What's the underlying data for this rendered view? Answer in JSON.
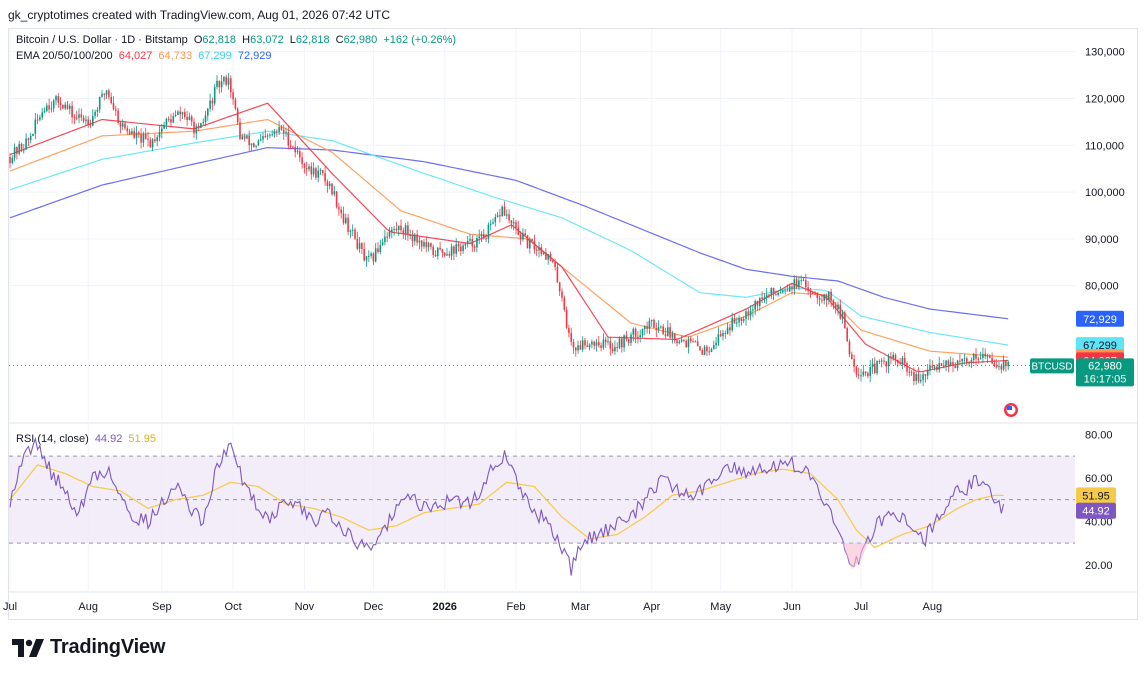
{
  "credit": "gk_cryptotimes created with TradingView.com, Aug 01, 2026 07:42 UTC",
  "legend": {
    "title": "Bitcoin / U.S. Dollar · 1D · Bitstamp",
    "o_label": "O",
    "o_val": "62,818",
    "h_label": "H",
    "h_val": "63,072",
    "l_label": "L",
    "l_val": "62,818",
    "c_label": "C",
    "c_val": "62,980",
    "change": "+162 (+0.26%)",
    "ema_title": "EMA 20/50/100/200",
    "ema20": "64,027",
    "ema50": "64,733",
    "ema100": "67,299",
    "ema200": "72,929",
    "rsi_title": "RSI (14, close)",
    "rsi_val": "44.92",
    "rsi_ma": "51.95"
  },
  "badges": {
    "symbol": "BTCUSD",
    "price": "62,980",
    "countdown": "16:17:05"
  },
  "colors": {
    "up": "#089981",
    "down": "#f23645",
    "ema20": "#f23645",
    "ema50": "#ff9850",
    "ema100": "#5ee4f7",
    "ema200": "#5b5ff0",
    "rsi": "#7e57c2",
    "rsi_ma": "#f7c948",
    "rsi_band": "#ede7f6"
  },
  "brand": "TradingView",
  "chart_data": [
    {
      "type": "candlestick",
      "title": "Bitcoin / U.S. Dollar · 1D · Bitstamp",
      "x_ticks": [
        "Jul",
        "Aug",
        "Sep",
        "Oct",
        "Nov",
        "Dec",
        "2026",
        "Feb",
        "Mar",
        "Apr",
        "May",
        "Jun",
        "Jul",
        "Aug"
      ],
      "y_ticks": [
        "130,000",
        "120,000",
        "110,000",
        "100,000",
        "90,000",
        "80,000"
      ],
      "ylim": [
        56000,
        131000
      ],
      "price_path": [
        [
          0,
          107500
        ],
        [
          8,
          111000
        ],
        [
          15,
          118500
        ],
        [
          22,
          119500
        ],
        [
          28,
          116000
        ],
        [
          35,
          115500
        ],
        [
          42,
          122000
        ],
        [
          48,
          114500
        ],
        [
          54,
          112000
        ],
        [
          61,
          110500
        ],
        [
          68,
          115000
        ],
        [
          75,
          117000
        ],
        [
          82,
          112500
        ],
        [
          90,
          122500
        ],
        [
          95,
          124500
        ],
        [
          100,
          112000
        ],
        [
          106,
          110000
        ],
        [
          112,
          111500
        ],
        [
          118,
          113500
        ],
        [
          124,
          109000
        ],
        [
          130,
          104500
        ],
        [
          135,
          104000
        ],
        [
          140,
          100500
        ],
        [
          145,
          94500
        ],
        [
          150,
          90000
        ],
        [
          155,
          85000
        ],
        [
          158,
          86000
        ],
        [
          163,
          91000
        ],
        [
          170,
          92500
        ],
        [
          177,
          90000
        ],
        [
          184,
          87000
        ],
        [
          191,
          87500
        ],
        [
          198,
          88500
        ],
        [
          205,
          90000
        ],
        [
          211,
          93500
        ],
        [
          214,
          96500
        ],
        [
          218,
          93000
        ],
        [
          225,
          89000
        ],
        [
          232,
          87500
        ],
        [
          236,
          84500
        ],
        [
          240,
          78000
        ],
        [
          243,
          69000
        ],
        [
          246,
          66500
        ],
        [
          250,
          68000
        ],
        [
          256,
          68000
        ],
        [
          262,
          67000
        ],
        [
          268,
          68500
        ],
        [
          274,
          70500
        ],
        [
          280,
          72000
        ],
        [
          286,
          70000
        ],
        [
          292,
          68500
        ],
        [
          297,
          67500
        ],
        [
          302,
          66000
        ],
        [
          308,
          69000
        ],
        [
          314,
          72000
        ],
        [
          320,
          74500
        ],
        [
          326,
          77000
        ],
        [
          332,
          78500
        ],
        [
          338,
          80000
        ],
        [
          343,
          80500
        ],
        [
          347,
          79500
        ],
        [
          352,
          78000
        ],
        [
          357,
          77500
        ],
        [
          362,
          73000
        ],
        [
          365,
          66000
        ],
        [
          368,
          62000
        ],
        [
          373,
          61500
        ],
        [
          378,
          63000
        ],
        [
          383,
          64500
        ],
        [
          389,
          63000
        ],
        [
          392,
          60500
        ],
        [
          395,
          59500
        ],
        [
          400,
          62000
        ],
        [
          406,
          64000
        ],
        [
          412,
          63000
        ],
        [
          418,
          64500
        ],
        [
          422,
          65500
        ],
        [
          426,
          64000
        ],
        [
          430,
          63500
        ],
        [
          434,
          62980
        ]
      ],
      "ema_last_values": {
        "ema20": 64027,
        "ema50": 64733,
        "ema100": 67299,
        "ema200": 72929
      },
      "ema200_path": [
        [
          0,
          94500
        ],
        [
          40,
          101500
        ],
        [
          80,
          106000
        ],
        [
          112,
          109500
        ],
        [
          140,
          109000
        ],
        [
          180,
          106500
        ],
        [
          220,
          102500
        ],
        [
          250,
          97000
        ],
        [
          280,
          91000
        ],
        [
          300,
          87000
        ],
        [
          320,
          83500
        ],
        [
          340,
          82000
        ],
        [
          360,
          81000
        ],
        [
          380,
          77500
        ],
        [
          400,
          75000
        ],
        [
          434,
          72929
        ]
      ],
      "ema100_path": [
        [
          0,
          100500
        ],
        [
          40,
          107000
        ],
        [
          80,
          110500
        ],
        [
          112,
          113000
        ],
        [
          140,
          111000
        ],
        [
          180,
          104000
        ],
        [
          210,
          99000
        ],
        [
          240,
          94500
        ],
        [
          270,
          87500
        ],
        [
          300,
          78500
        ],
        [
          320,
          77500
        ],
        [
          340,
          79500
        ],
        [
          355,
          79000
        ],
        [
          370,
          73500
        ],
        [
          400,
          70000
        ],
        [
          434,
          67299
        ]
      ],
      "ema50_path": [
        [
          0,
          104500
        ],
        [
          40,
          112000
        ],
        [
          80,
          113000
        ],
        [
          112,
          115500
        ],
        [
          140,
          108500
        ],
        [
          170,
          96000
        ],
        [
          200,
          91000
        ],
        [
          225,
          90000
        ],
        [
          245,
          82000
        ],
        [
          270,
          72000
        ],
        [
          295,
          69000
        ],
        [
          320,
          73500
        ],
        [
          340,
          78500
        ],
        [
          355,
          78000
        ],
        [
          370,
          70500
        ],
        [
          400,
          66000
        ],
        [
          434,
          64733
        ]
      ],
      "ema20_path": [
        [
          0,
          108000
        ],
        [
          40,
          115500
        ],
        [
          80,
          113500
        ],
        [
          112,
          119000
        ],
        [
          140,
          104000
        ],
        [
          165,
          91500
        ],
        [
          200,
          89000
        ],
        [
          218,
          93000
        ],
        [
          240,
          84000
        ],
        [
          260,
          69000
        ],
        [
          290,
          68500
        ],
        [
          320,
          75000
        ],
        [
          340,
          80500
        ],
        [
          355,
          77500
        ],
        [
          372,
          67500
        ],
        [
          395,
          61500
        ],
        [
          415,
          63500
        ],
        [
          434,
          64027
        ]
      ]
    },
    {
      "type": "line",
      "title": "RSI (14, close)",
      "y_ticks": [
        "80.00",
        "60.00",
        "40.00",
        "20.00"
      ],
      "ylim": [
        14,
        82
      ],
      "bands": [
        70,
        50,
        30
      ],
      "series": [
        {
          "name": "RSI",
          "values": [
            [
              0,
              50
            ],
            [
              6,
              70
            ],
            [
              12,
              76
            ],
            [
              18,
              62
            ],
            [
              24,
              54
            ],
            [
              30,
              44
            ],
            [
              36,
              60
            ],
            [
              42,
              64
            ],
            [
              48,
              52
            ],
            [
              54,
              42
            ],
            [
              60,
              40
            ],
            [
              66,
              48
            ],
            [
              72,
              58
            ],
            [
              78,
              46
            ],
            [
              84,
              40
            ],
            [
              90,
              66
            ],
            [
              96,
              74
            ],
            [
              102,
              57
            ],
            [
              108,
              46
            ],
            [
              114,
              42
            ],
            [
              120,
              50
            ],
            [
              126,
              46
            ],
            [
              132,
              40
            ],
            [
              138,
              46
            ],
            [
              144,
              38
            ],
            [
              150,
              30
            ],
            [
              156,
              28
            ],
            [
              162,
              36
            ],
            [
              168,
              45
            ],
            [
              174,
              52
            ],
            [
              180,
              46
            ],
            [
              186,
              48
            ],
            [
              192,
              50
            ],
            [
              198,
              48
            ],
            [
              204,
              52
            ],
            [
              210,
              66
            ],
            [
              216,
              70
            ],
            [
              222,
              54
            ],
            [
              228,
              44
            ],
            [
              234,
              40
            ],
            [
              240,
              28
            ],
            [
              244,
              18
            ],
            [
              248,
              28
            ],
            [
              254,
              34
            ],
            [
              260,
              36
            ],
            [
              266,
              40
            ],
            [
              272,
              44
            ],
            [
              278,
              54
            ],
            [
              284,
              60
            ],
            [
              290,
              54
            ],
            [
              296,
              52
            ],
            [
              302,
              55
            ],
            [
              308,
              62
            ],
            [
              314,
              66
            ],
            [
              320,
              63
            ],
            [
              326,
              64
            ],
            [
              332,
              66
            ],
            [
              338,
              68
            ],
            [
              344,
              64
            ],
            [
              350,
              58
            ],
            [
              356,
              46
            ],
            [
              362,
              30
            ],
            [
              366,
              18
            ],
            [
              370,
              24
            ],
            [
              376,
              38
            ],
            [
              382,
              44
            ],
            [
              388,
              42
            ],
            [
              394,
              36
            ],
            [
              398,
              32
            ],
            [
              404,
              44
            ],
            [
              410,
              52
            ],
            [
              416,
              55
            ],
            [
              420,
              61
            ],
            [
              424,
              56
            ],
            [
              428,
              50
            ],
            [
              432,
              44.92
            ]
          ]
        },
        {
          "name": "RSI MA",
          "values": [
            [
              0,
              50
            ],
            [
              12,
              66
            ],
            [
              24,
              62
            ],
            [
              36,
              56
            ],
            [
              48,
              54
            ],
            [
              60,
              46
            ],
            [
              72,
              50
            ],
            [
              84,
              52
            ],
            [
              96,
              58
            ],
            [
              108,
              56
            ],
            [
              120,
              48
            ],
            [
              132,
              46
            ],
            [
              144,
              42
            ],
            [
              156,
              36
            ],
            [
              168,
              38
            ],
            [
              180,
              44
            ],
            [
              192,
              46
            ],
            [
              204,
              48
            ],
            [
              216,
              58
            ],
            [
              228,
              56
            ],
            [
              240,
              42
            ],
            [
              252,
              32
            ],
            [
              264,
              34
            ],
            [
              276,
              42
            ],
            [
              288,
              52
            ],
            [
              300,
              54
            ],
            [
              312,
              58
            ],
            [
              324,
              62
            ],
            [
              336,
              64
            ],
            [
              348,
              62
            ],
            [
              360,
              50
            ],
            [
              368,
              36
            ],
            [
              376,
              28
            ],
            [
              388,
              34
            ],
            [
              400,
              38
            ],
            [
              412,
              46
            ],
            [
              420,
              50
            ],
            [
              428,
              52
            ],
            [
              432,
              51.95
            ]
          ]
        }
      ]
    }
  ]
}
